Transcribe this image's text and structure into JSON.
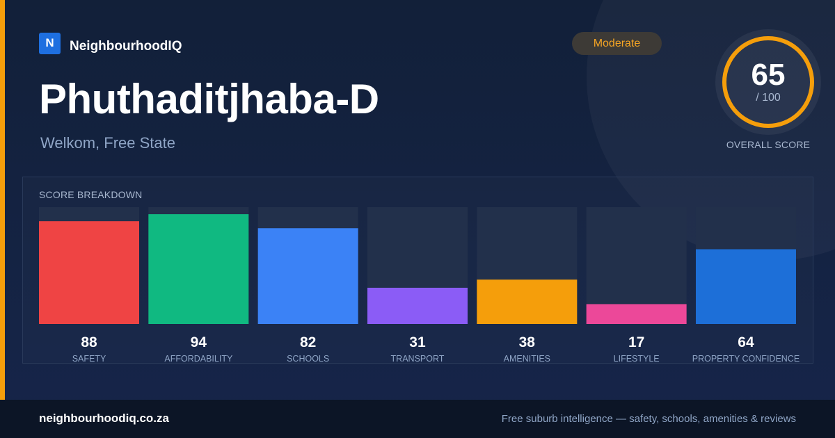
{
  "brand": {
    "logo_letter": "N",
    "name": "NeighbourhoodIQ"
  },
  "suburb": {
    "name": "Phuthaditjhaba-D",
    "location": "Welkom, Free State"
  },
  "rating": {
    "label": "Moderate",
    "color": "#f5a524"
  },
  "overall": {
    "score": "65",
    "max_label": "/ 100",
    "label": "OVERALL SCORE",
    "value": 65,
    "max": 100,
    "ring_color": "#f59e0b"
  },
  "breakdown": {
    "title": "SCORE BREAKDOWN"
  },
  "chart_data": {
    "type": "bar",
    "title": "SCORE BREAKDOWN",
    "categories": [
      "SAFETY",
      "AFFORDABILITY",
      "SCHOOLS",
      "TRANSPORT",
      "AMENITIES",
      "LIFESTYLE",
      "PROPERTY CONFIDENCE"
    ],
    "values": [
      88,
      94,
      82,
      31,
      38,
      17,
      64
    ],
    "colors": [
      "#ef4444",
      "#10b981",
      "#3b82f6",
      "#8b5cf6",
      "#f59e0b",
      "#ec4899",
      "#1d6fd8"
    ],
    "ylim": [
      0,
      100
    ],
    "grid": false
  },
  "footer": {
    "url": "neighbourhoodiq.co.za",
    "tagline": "Free suburb intelligence — safety, schools, amenities & reviews"
  }
}
